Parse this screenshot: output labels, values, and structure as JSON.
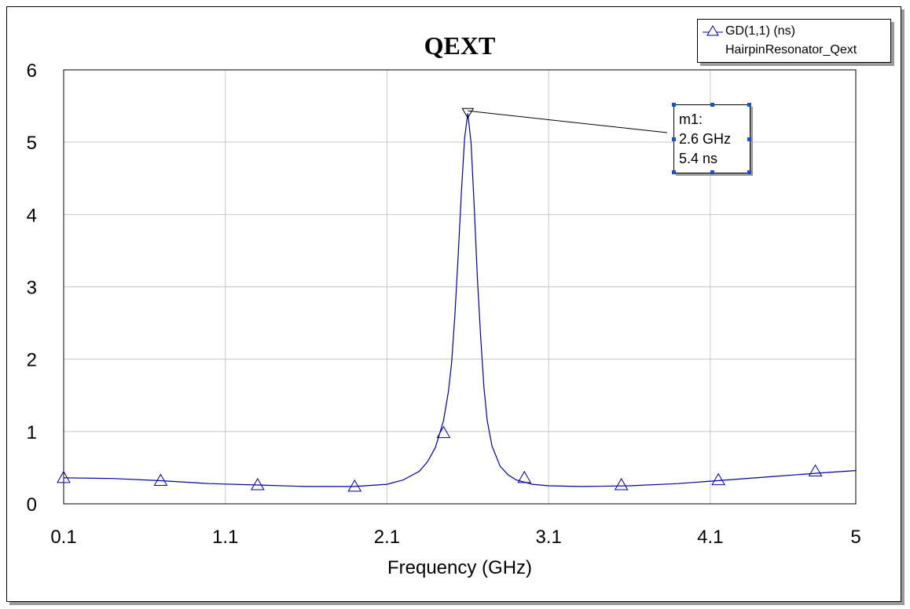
{
  "chart_data": {
    "type": "line",
    "title": "QEXT",
    "xlabel": "Frequency (GHz)",
    "ylabel": "",
    "xlim": [
      0.1,
      5
    ],
    "ylim": [
      0,
      6
    ],
    "x_ticks": [
      "0.1",
      "1.1",
      "2.1",
      "3.1",
      "4.1",
      "5"
    ],
    "x_tick_values": [
      0.1,
      1.1,
      2.1,
      3.1,
      4.1,
      5
    ],
    "y_ticks": [
      "0",
      "1",
      "2",
      "3",
      "4",
      "5",
      "6"
    ],
    "y_tick_values": [
      0,
      1,
      2,
      3,
      4,
      5,
      6
    ],
    "grid": true,
    "legend_placement": "top-right",
    "series": [
      {
        "name": "GD(1,1) (ns)",
        "file": "HairpinResonator_Qext",
        "color": "#0000a0",
        "marker": "triangle-up",
        "x": [
          0.1,
          0.4,
          0.7,
          1.0,
          1.3,
          1.6,
          1.9,
          2.1,
          2.2,
          2.3,
          2.35,
          2.4,
          2.45,
          2.48,
          2.5,
          2.52,
          2.54,
          2.56,
          2.58,
          2.6,
          2.62,
          2.64,
          2.66,
          2.68,
          2.7,
          2.72,
          2.75,
          2.8,
          2.85,
          2.9,
          3.0,
          3.1,
          3.3,
          3.6,
          3.9,
          4.2,
          4.5,
          4.8,
          5.0
        ],
        "y": [
          0.36,
          0.35,
          0.32,
          0.28,
          0.26,
          0.24,
          0.24,
          0.27,
          0.33,
          0.45,
          0.58,
          0.78,
          1.15,
          1.55,
          1.95,
          2.6,
          3.4,
          4.3,
          5.05,
          5.4,
          5.0,
          4.1,
          3.1,
          2.3,
          1.6,
          1.15,
          0.8,
          0.52,
          0.4,
          0.33,
          0.27,
          0.25,
          0.24,
          0.25,
          0.28,
          0.33,
          0.38,
          0.43,
          0.46
        ],
        "marker_x": [
          0.1,
          0.7,
          1.3,
          1.9,
          2.45,
          2.95,
          3.55,
          4.15,
          4.75
        ],
        "marker_y": [
          0.36,
          0.32,
          0.26,
          0.24,
          0.98,
          0.36,
          0.26,
          0.33,
          0.45
        ]
      }
    ],
    "annotations": [
      {
        "label": "m1:",
        "freq_label": "2.6 GHz",
        "value_label": "5.4 ns",
        "x": 2.6,
        "y": 5.4
      }
    ]
  }
}
